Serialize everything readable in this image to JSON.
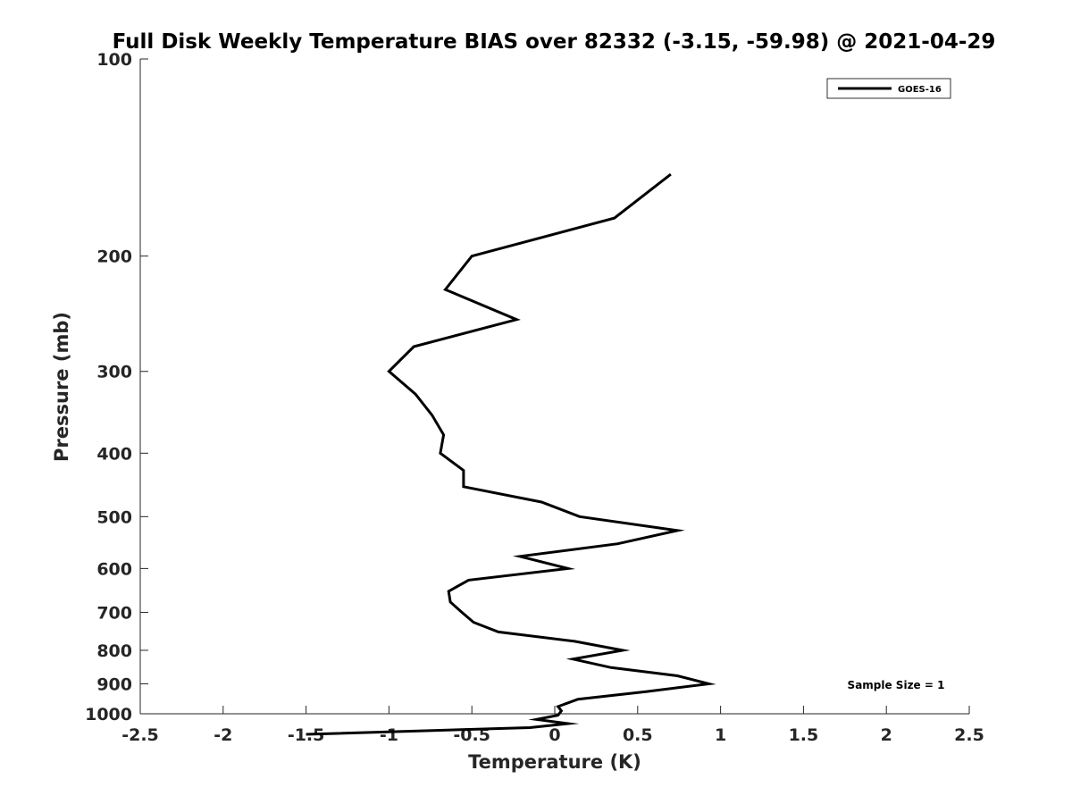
{
  "chart_data": {
    "type": "line",
    "title": "Full Disk Weekly Temperature BIAS over 82332 (-3.15, -59.98) @ 2021-04-29",
    "xlabel": "Temperature (K)",
    "ylabel": "Pressure (mb)",
    "xlim": [
      -2.5,
      2.5
    ],
    "ylim": [
      1000,
      100
    ],
    "yscale": "log",
    "x_ticks": [
      "-2.5",
      "-2",
      "-1.5",
      "-1",
      "-0.5",
      "0",
      "0.5",
      "1",
      "1.5",
      "2",
      "2.5"
    ],
    "y_ticks": [
      "100",
      "200",
      "300",
      "400",
      "500",
      "600",
      "700",
      "800",
      "900",
      "1000"
    ],
    "grid": false,
    "legend_position": "top-right",
    "annotation": "Sample Size = 1",
    "series": [
      {
        "name": "GOES-16",
        "color": "#000000",
        "points": [
          [
            0.7,
            150
          ],
          [
            0.36,
            175
          ],
          [
            -0.5,
            200
          ],
          [
            -0.66,
            225
          ],
          [
            -0.23,
            250
          ],
          [
            -0.85,
            275
          ],
          [
            -1.0,
            300
          ],
          [
            -0.84,
            325
          ],
          [
            -0.74,
            350
          ],
          [
            -0.67,
            375
          ],
          [
            -0.69,
            400
          ],
          [
            -0.55,
            425
          ],
          [
            -0.55,
            450
          ],
          [
            -0.08,
            475
          ],
          [
            0.15,
            500
          ],
          [
            0.74,
            525
          ],
          [
            0.38,
            550
          ],
          [
            -0.21,
            575
          ],
          [
            0.08,
            600
          ],
          [
            -0.52,
            625
          ],
          [
            -0.64,
            650
          ],
          [
            -0.63,
            675
          ],
          [
            -0.56,
            700
          ],
          [
            -0.49,
            725
          ],
          [
            -0.34,
            750
          ],
          [
            0.12,
            775
          ],
          [
            0.41,
            800
          ],
          [
            0.11,
            825
          ],
          [
            0.34,
            850
          ],
          [
            0.74,
            875
          ],
          [
            0.93,
            900
          ],
          [
            0.55,
            925
          ],
          [
            0.14,
            950
          ],
          [
            0.02,
            975
          ],
          [
            0.04,
            990
          ],
          [
            0.02,
            1005
          ],
          [
            -0.11,
            1020
          ],
          [
            0.08,
            1035
          ],
          [
            -0.15,
            1050
          ],
          [
            -1.5,
            1075
          ]
        ]
      }
    ]
  }
}
